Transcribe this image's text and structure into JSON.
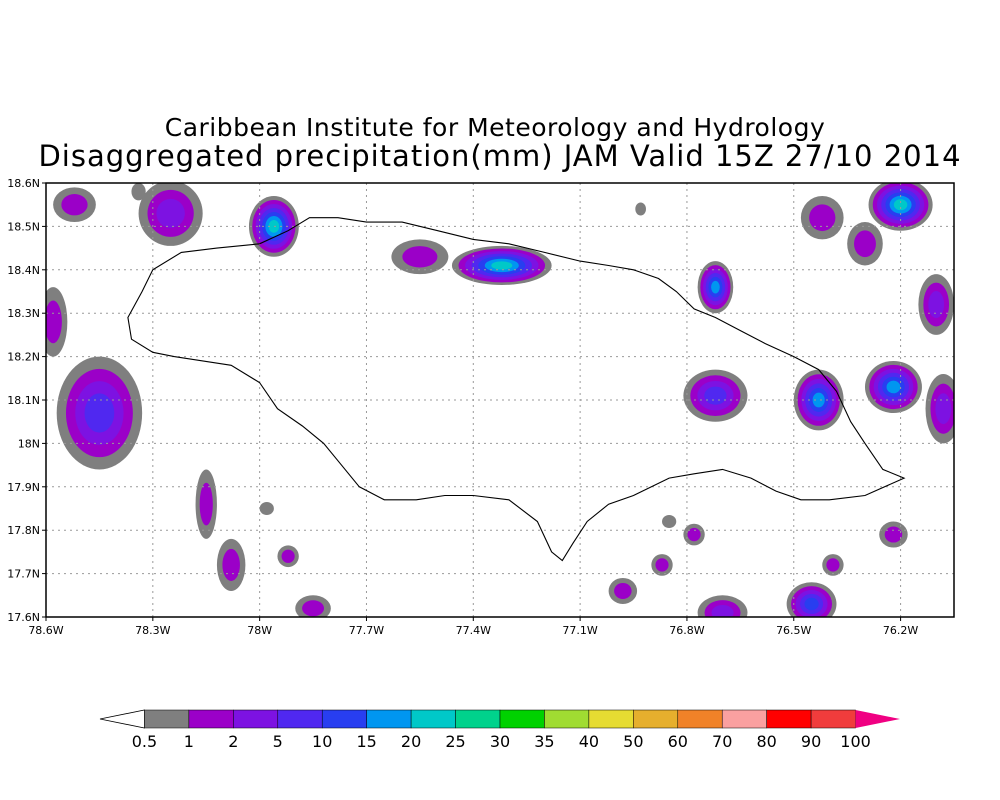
{
  "titles": {
    "line1": "Caribbean Institute for Meteorology and Hydrology",
    "line2": "Disaggregated precipitation(mm) JAM Valid 15Z 27/10 2014"
  },
  "map": {
    "lon_range": [
      -78.6,
      -76.05
    ],
    "lat_range": [
      17.6,
      18.6
    ],
    "lat_ticks": [
      {
        "value": 18.6,
        "label": "18.6N"
      },
      {
        "value": 18.5,
        "label": "18.5N"
      },
      {
        "value": 18.4,
        "label": "18.4N"
      },
      {
        "value": 18.3,
        "label": "18.3N"
      },
      {
        "value": 18.2,
        "label": "18.2N"
      },
      {
        "value": 18.1,
        "label": "18.1N"
      },
      {
        "value": 18.0,
        "label": "18N"
      },
      {
        "value": 17.9,
        "label": "17.9N"
      },
      {
        "value": 17.8,
        "label": "17.8N"
      },
      {
        "value": 17.7,
        "label": "17.7N"
      },
      {
        "value": 17.6,
        "label": "17.6N"
      }
    ],
    "lon_ticks": [
      {
        "value": -78.6,
        "label": "78.6W"
      },
      {
        "value": -78.3,
        "label": "78.3W"
      },
      {
        "value": -78.0,
        "label": "78W"
      },
      {
        "value": -77.7,
        "label": "77.7W"
      },
      {
        "value": -77.4,
        "label": "77.4W"
      },
      {
        "value": -77.1,
        "label": "77.1W"
      },
      {
        "value": -76.8,
        "label": "76.8W"
      },
      {
        "value": -76.5,
        "label": "76.5W"
      },
      {
        "value": -76.2,
        "label": "76.2W"
      }
    ],
    "grid": true,
    "coastline": [
      [
        -78.37,
        18.29
      ],
      [
        -78.33,
        18.35
      ],
      [
        -78.3,
        18.4
      ],
      [
        -78.22,
        18.44
      ],
      [
        -78.12,
        18.45
      ],
      [
        -78.0,
        18.46
      ],
      [
        -77.92,
        18.49
      ],
      [
        -77.86,
        18.52
      ],
      [
        -77.78,
        18.52
      ],
      [
        -77.7,
        18.51
      ],
      [
        -77.6,
        18.51
      ],
      [
        -77.5,
        18.49
      ],
      [
        -77.4,
        18.47
      ],
      [
        -77.3,
        18.46
      ],
      [
        -77.2,
        18.44
      ],
      [
        -77.1,
        18.42
      ],
      [
        -77.02,
        18.41
      ],
      [
        -76.95,
        18.4
      ],
      [
        -76.88,
        18.38
      ],
      [
        -76.83,
        18.35
      ],
      [
        -76.78,
        18.31
      ],
      [
        -76.72,
        18.29
      ],
      [
        -76.65,
        18.26
      ],
      [
        -76.58,
        18.23
      ],
      [
        -76.5,
        18.2
      ],
      [
        -76.43,
        18.17
      ],
      [
        -76.38,
        18.12
      ],
      [
        -76.34,
        18.05
      ],
      [
        -76.3,
        18.0
      ],
      [
        -76.25,
        17.94
      ],
      [
        -76.19,
        17.92
      ],
      [
        -76.3,
        17.88
      ],
      [
        -76.4,
        17.87
      ],
      [
        -76.48,
        17.87
      ],
      [
        -76.55,
        17.89
      ],
      [
        -76.62,
        17.92
      ],
      [
        -76.7,
        17.94
      ],
      [
        -76.78,
        17.93
      ],
      [
        -76.85,
        17.92
      ],
      [
        -76.95,
        17.88
      ],
      [
        -77.02,
        17.86
      ],
      [
        -77.08,
        17.82
      ],
      [
        -77.12,
        17.77
      ],
      [
        -77.15,
        17.73
      ],
      [
        -77.18,
        17.75
      ],
      [
        -77.22,
        17.82
      ],
      [
        -77.3,
        17.87
      ],
      [
        -77.4,
        17.88
      ],
      [
        -77.48,
        17.88
      ],
      [
        -77.56,
        17.87
      ],
      [
        -77.65,
        17.87
      ],
      [
        -77.72,
        17.9
      ],
      [
        -77.78,
        17.96
      ],
      [
        -77.82,
        18.0
      ],
      [
        -77.88,
        18.04
      ],
      [
        -77.95,
        18.08
      ],
      [
        -78.0,
        18.14
      ],
      [
        -78.08,
        18.18
      ],
      [
        -78.16,
        18.19
      ],
      [
        -78.24,
        18.2
      ],
      [
        -78.3,
        18.21
      ],
      [
        -78.36,
        18.24
      ],
      [
        -78.37,
        18.29
      ]
    ],
    "precip_cells": [
      {
        "lon": -78.25,
        "lat": 18.53,
        "rx": 0.09,
        "ry": 0.075,
        "max_level": 3
      },
      {
        "lon": -78.52,
        "lat": 18.55,
        "rx": 0.06,
        "ry": 0.04,
        "max_level": 2
      },
      {
        "lon": -77.96,
        "lat": 18.5,
        "rx": 0.07,
        "ry": 0.07,
        "max_level": 7
      },
      {
        "lon": -77.32,
        "lat": 18.41,
        "rx": 0.14,
        "ry": 0.045,
        "max_level": 7
      },
      {
        "lon": -77.55,
        "lat": 18.43,
        "rx": 0.08,
        "ry": 0.04,
        "max_level": 2
      },
      {
        "lon": -76.72,
        "lat": 18.36,
        "rx": 0.05,
        "ry": 0.06,
        "max_level": 6
      },
      {
        "lon": -76.42,
        "lat": 18.52,
        "rx": 0.06,
        "ry": 0.05,
        "max_level": 2
      },
      {
        "lon": -76.2,
        "lat": 18.55,
        "rx": 0.09,
        "ry": 0.06,
        "max_level": 7
      },
      {
        "lon": -76.3,
        "lat": 18.46,
        "rx": 0.05,
        "ry": 0.05,
        "max_level": 2
      },
      {
        "lon": -76.1,
        "lat": 18.32,
        "rx": 0.05,
        "ry": 0.07,
        "max_level": 3
      },
      {
        "lon": -78.45,
        "lat": 18.07,
        "rx": 0.12,
        "ry": 0.13,
        "max_level": 4
      },
      {
        "lon": -78.58,
        "lat": 18.28,
        "rx": 0.04,
        "ry": 0.08,
        "max_level": 2
      },
      {
        "lon": -76.72,
        "lat": 18.11,
        "rx": 0.09,
        "ry": 0.06,
        "max_level": 4
      },
      {
        "lon": -76.43,
        "lat": 18.1,
        "rx": 0.07,
        "ry": 0.07,
        "max_level": 6
      },
      {
        "lon": -76.22,
        "lat": 18.13,
        "rx": 0.08,
        "ry": 0.06,
        "max_level": 6
      },
      {
        "lon": -76.08,
        "lat": 18.08,
        "rx": 0.05,
        "ry": 0.08,
        "max_level": 3
      },
      {
        "lon": -76.22,
        "lat": 17.79,
        "rx": 0.04,
        "ry": 0.03,
        "max_level": 2
      },
      {
        "lon": -76.45,
        "lat": 17.63,
        "rx": 0.07,
        "ry": 0.05,
        "max_level": 5
      },
      {
        "lon": -76.7,
        "lat": 17.61,
        "rx": 0.07,
        "ry": 0.04,
        "max_level": 3
      },
      {
        "lon": -76.98,
        "lat": 17.66,
        "rx": 0.04,
        "ry": 0.03,
        "max_level": 2
      },
      {
        "lon": -77.85,
        "lat": 17.62,
        "rx": 0.05,
        "ry": 0.03,
        "max_level": 2
      },
      {
        "lon": -78.15,
        "lat": 17.86,
        "rx": 0.03,
        "ry": 0.08,
        "max_level": 2
      },
      {
        "lon": -78.08,
        "lat": 17.72,
        "rx": 0.04,
        "ry": 0.06,
        "max_level": 2
      },
      {
        "lon": -77.92,
        "lat": 17.74,
        "rx": 0.03,
        "ry": 0.025,
        "max_level": 2
      },
      {
        "lon": -76.78,
        "lat": 17.79,
        "rx": 0.03,
        "ry": 0.025,
        "max_level": 2
      },
      {
        "lon": -76.87,
        "lat": 17.72,
        "rx": 0.03,
        "ry": 0.025,
        "max_level": 2
      },
      {
        "lon": -76.39,
        "lat": 17.72,
        "rx": 0.03,
        "ry": 0.025,
        "max_level": 2
      },
      {
        "lon": -77.98,
        "lat": 17.85,
        "rx": 0.02,
        "ry": 0.015,
        "max_level": 1
      },
      {
        "lon": -76.93,
        "lat": 18.54,
        "rx": 0.015,
        "ry": 0.015,
        "max_level": 1
      },
      {
        "lon": -76.85,
        "lat": 17.82,
        "rx": 0.02,
        "ry": 0.015,
        "max_level": 1
      },
      {
        "lon": -78.34,
        "lat": 18.58,
        "rx": 0.02,
        "ry": 0.02,
        "max_level": 1
      }
    ]
  },
  "colorbar": {
    "levels": [
      "0.5",
      "1",
      "2",
      "5",
      "10",
      "15",
      "20",
      "25",
      "30",
      "35",
      "40",
      "50",
      "60",
      "70",
      "80",
      "90",
      "100"
    ],
    "colors": [
      "#ffffff",
      "#7f7f7f",
      "#9b00c8",
      "#7d12e2",
      "#5028f0",
      "#283ef0",
      "#0096f0",
      "#00c8c8",
      "#00d28c",
      "#00d200",
      "#a0dc32",
      "#e6dc32",
      "#e6af2d",
      "#f08228",
      "#faa0a0",
      "#ff0000",
      "#f03c3c",
      "#f00082"
    ]
  }
}
